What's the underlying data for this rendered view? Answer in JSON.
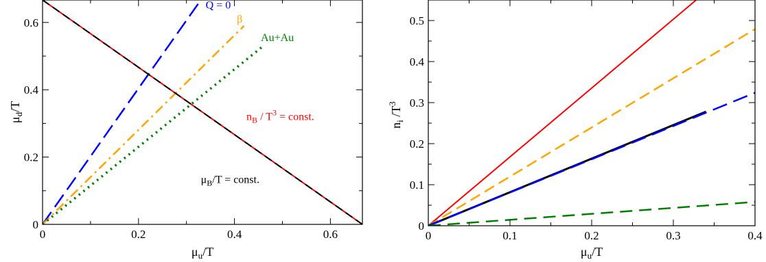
{
  "chart_data": [
    {
      "type": "line",
      "title": "",
      "xlabel": {
        "main": "μ",
        "sub": "u",
        "rest": "/T"
      },
      "ylabel": {
        "main": "μ",
        "sub": "d",
        "rest": "/T"
      },
      "xlim": [
        0,
        0.6667
      ],
      "ylim": [
        0,
        0.6667
      ],
      "xticks": [
        0,
        0.2,
        0.4,
        0.6
      ],
      "xtick_labels": [
        "0",
        "0.2",
        "0.4",
        "0.6"
      ],
      "yticks": [
        0,
        0.2,
        0.4,
        0.6
      ],
      "ytick_labels": [
        "0",
        "0.2",
        "0.4",
        "0.6"
      ],
      "grid": false,
      "series": [
        {
          "color": "#0000ff",
          "dash": "22,9",
          "width": 2.5,
          "x": [
            0,
            0.33
          ],
          "y": [
            0,
            0.667
          ]
        },
        {
          "color": "#ffa500",
          "dash": "14,6,3,6",
          "width": 2.5,
          "x": [
            0,
            0.42
          ],
          "y": [
            0,
            0.59
          ]
        },
        {
          "color": "#008000",
          "dash": "2.5,6",
          "width": 3.5,
          "x": [
            0,
            0.46
          ],
          "y": [
            0,
            0.53
          ]
        },
        {
          "color": "#ff0000",
          "dash": "",
          "width": 2,
          "x": [
            0,
            0.6667
          ],
          "y": [
            0.6667,
            0
          ]
        },
        {
          "color": "#000000",
          "dash": "12,6",
          "width": 2,
          "x": [
            0,
            0.6667
          ],
          "y": [
            0.6667,
            0
          ]
        }
      ],
      "annotations": [
        {
          "kind": "Q",
          "color": "#0000ff",
          "x": 0.34,
          "y": 0.641,
          "label": "Q = 0"
        },
        {
          "kind": "beta",
          "color": "#ffa500",
          "x": 0.405,
          "y": 0.6,
          "label": "β"
        },
        {
          "kind": "auau",
          "color": "#008000",
          "x": 0.455,
          "y": 0.545,
          "label": "Au+Au"
        },
        {
          "kind": "nb",
          "color": "#ff0000",
          "x": 0.425,
          "y": 0.31,
          "label": {
            "a": "n",
            "sub": "B",
            "b": " / T",
            "sup": "3",
            "c": " = const."
          }
        },
        {
          "kind": "mub",
          "color": "#000000",
          "x": 0.33,
          "y": 0.123,
          "label": {
            "a": "μ",
            "sub": "B",
            "b": "/T = const."
          }
        }
      ]
    },
    {
      "type": "line",
      "title": "",
      "xlabel": {
        "main": "μ",
        "sub": "u",
        "rest": "/T"
      },
      "ylabel": {
        "main": "n",
        "sub": "i",
        "rest": " /T",
        "sup": "3"
      },
      "xlim": [
        0,
        0.4
      ],
      "ylim": [
        0,
        0.55
      ],
      "xticks": [
        0,
        0.1,
        0.2,
        0.3,
        0.4
      ],
      "xtick_labels": [
        "0",
        "0.1",
        "0.2",
        "0.3",
        "0.4"
      ],
      "yticks": [
        0,
        0.1,
        0.2,
        0.3,
        0.4,
        0.5
      ],
      "ytick_labels": [
        "0",
        "0.1",
        "0.2",
        "0.3",
        "0.4",
        "0.5"
      ],
      "grid": false,
      "series": [
        {
          "color": "#ff0000",
          "dash": "",
          "width": 2,
          "x": [
            0,
            0.328
          ],
          "y": [
            0,
            0.55
          ]
        },
        {
          "color": "#ffa500",
          "dash": "16,8",
          "width": 2.5,
          "x": [
            0,
            0.4
          ],
          "y": [
            0,
            0.479
          ]
        },
        {
          "color": "#000000",
          "dash": "",
          "width": 3,
          "x": [
            0,
            0.34
          ],
          "y": [
            0,
            0.278
          ]
        },
        {
          "color": "#0000ff",
          "dash": "22,10",
          "width": 2.5,
          "x": [
            0,
            0.4
          ],
          "y": [
            0,
            0.324
          ]
        },
        {
          "color": "#008000",
          "dash": "18,10",
          "width": 2.5,
          "x": [
            0,
            0.4
          ],
          "y": [
            0,
            0.058
          ]
        }
      ]
    }
  ]
}
